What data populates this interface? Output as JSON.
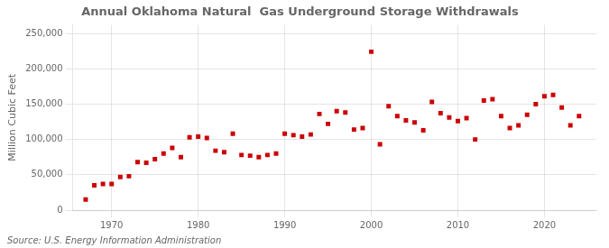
{
  "chart_data": {
    "type": "scatter",
    "title": "Annual Oklahoma Natural  Gas Underground Storage Withdrawals",
    "ylabel": "Million Cubic Feet",
    "annotations": [
      "Source: U.S. Energy Information Administration"
    ],
    "color": "#cc0000",
    "marker": "square",
    "grid": true,
    "xlim": [
      1965.5,
      2026
    ],
    "xticks": [
      1970,
      1980,
      1990,
      2000,
      2010,
      2020
    ],
    "ylim": [
      0,
      262000
    ],
    "yticks": [
      0,
      {
        "value": 50000,
        "label": "50,000"
      },
      {
        "value": 100000,
        "label": "100,000"
      },
      {
        "value": 150000,
        "label": "150,000"
      },
      {
        "value": 200000,
        "label": "200,000"
      },
      {
        "value": 250000,
        "label": "250,000"
      }
    ],
    "x": [
      1967,
      1968,
      1969,
      1970,
      1971,
      1972,
      1973,
      1974,
      1975,
      1976,
      1977,
      1978,
      1979,
      1980,
      1981,
      1982,
      1983,
      1984,
      1985,
      1986,
      1987,
      1988,
      1989,
      1990,
      1991,
      1992,
      1993,
      1994,
      1995,
      1996,
      1997,
      1998,
      1999,
      2000,
      2001,
      2002,
      2003,
      2004,
      2005,
      2006,
      2007,
      2008,
      2009,
      2010,
      2011,
      2012,
      2013,
      2014,
      2015,
      2016,
      2017,
      2018,
      2019,
      2020,
      2021,
      2022,
      2023,
      2024
    ],
    "values": [
      15000,
      35000,
      37000,
      37000,
      47000,
      48000,
      68000,
      67000,
      72000,
      80000,
      88000,
      75000,
      103000,
      104000,
      102000,
      84000,
      82000,
      108000,
      78000,
      77000,
      75000,
      78000,
      80000,
      108000,
      106000,
      104000,
      107000,
      136000,
      122000,
      140000,
      138000,
      114000,
      116000,
      224000,
      93000,
      147000,
      133000,
      127000,
      124000,
      113000,
      153000,
      137000,
      131000,
      126000,
      130000,
      100000,
      155000,
      157000,
      133000,
      116000,
      120000,
      135000,
      150000,
      161000,
      163000,
      145000,
      120000,
      133000
    ]
  }
}
